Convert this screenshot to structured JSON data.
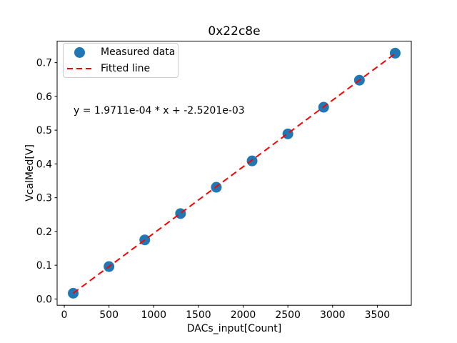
{
  "chart_data": {
    "type": "scatter",
    "title": "0x22c8e",
    "xlabel": "DACs_input[Count]",
    "ylabel": "VcalMed[V]",
    "xlim": [
      -80,
      3880
    ],
    "ylim": [
      -0.0186,
      0.7636
    ],
    "grid": false,
    "x_ticks": [
      0,
      500,
      1000,
      1500,
      2000,
      2500,
      3000,
      3500
    ],
    "x_tick_labels": [
      "0",
      "500",
      "1000",
      "1500",
      "2000",
      "2500",
      "3000",
      "3500"
    ],
    "y_ticks": [
      0.0,
      0.1,
      0.2,
      0.3,
      0.4,
      0.5,
      0.6,
      0.7
    ],
    "y_tick_labels": [
      "0.0",
      "0.1",
      "0.2",
      "0.3",
      "0.4",
      "0.5",
      "0.6",
      "0.7"
    ],
    "legend_position": "upper left",
    "series": [
      {
        "name": "Measured data",
        "type": "scatter",
        "marker": "circle",
        "color": "#1f77b4",
        "x": [
          100,
          500,
          900,
          1300,
          1700,
          2100,
          2500,
          2900,
          3300,
          3700
        ],
        "y": [
          0.017,
          0.096,
          0.175,
          0.253,
          0.331,
          0.409,
          0.489,
          0.568,
          0.648,
          0.728
        ]
      },
      {
        "name": "Fitted line",
        "type": "line",
        "style": "dashed",
        "color": "#ff0000",
        "x": [
          100,
          3700
        ],
        "y": [
          0.0172,
          0.7268
        ]
      }
    ],
    "annotation": {
      "text": "y = 1.9711e-04 * x + -2.5201e-03",
      "x": 100,
      "y": 0.55
    }
  },
  "colors": {
    "marker_blue": "#1f77b4",
    "line_red": "#ff0000",
    "axes_black": "#000000",
    "legend_border": "#cccccc"
  }
}
